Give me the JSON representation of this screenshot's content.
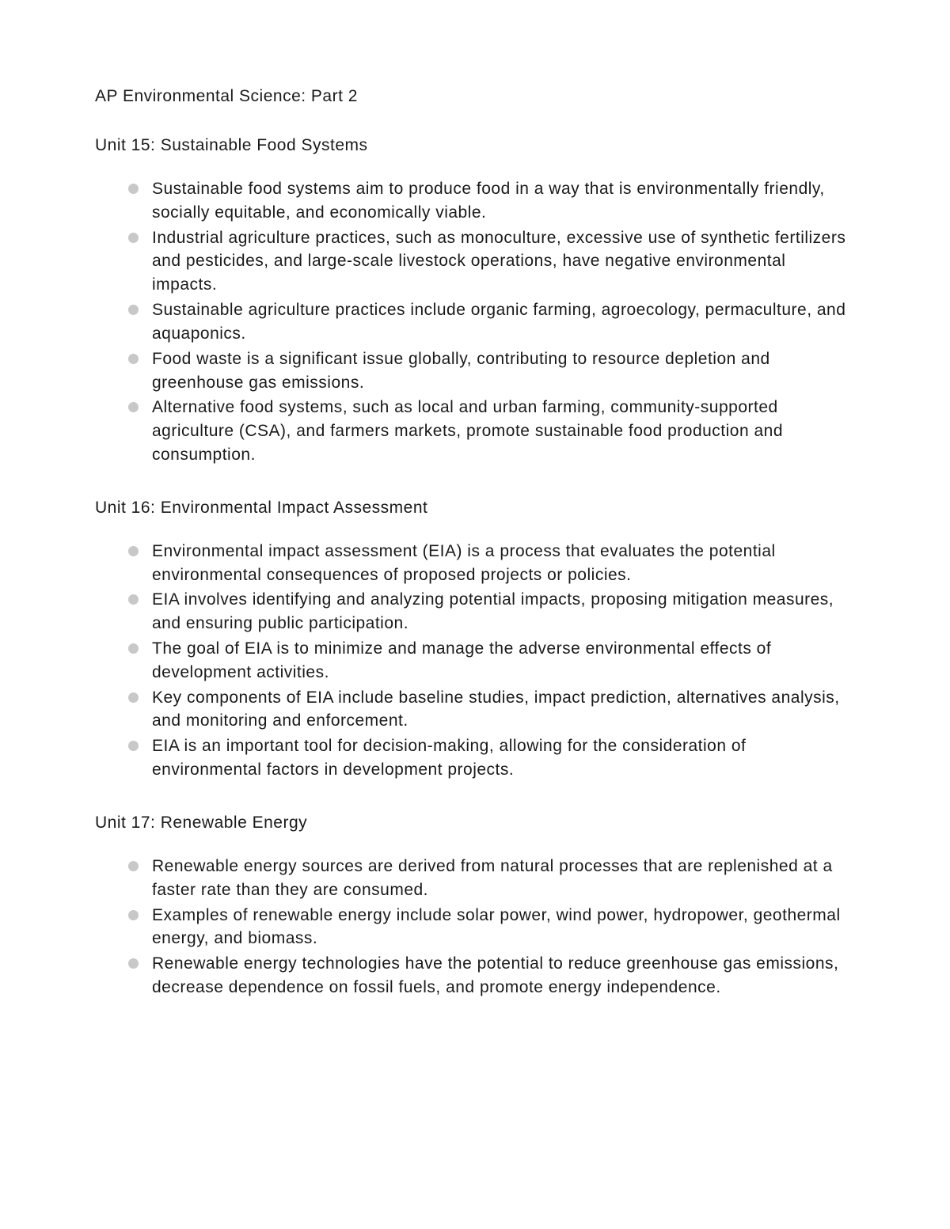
{
  "document": {
    "title": "AP Environmental Science: Part 2",
    "title_fontsize": 21,
    "body_fontsize": 21,
    "text_color": "#1a1a1a",
    "background_color": "#ffffff",
    "bullet_color": "#c8c8c8",
    "bullet_diameter": 13,
    "line_height": 1.42,
    "letter_spacing": 0.5,
    "font_family": "Verdana, Geneva, sans-serif",
    "units": [
      {
        "heading": "Unit 15: Sustainable Food Systems",
        "bullets": [
          "Sustainable food systems aim to produce food in a way that is environmentally friendly, socially equitable, and economically viable.",
          "Industrial agriculture practices, such as monoculture, excessive use of synthetic fertilizers and pesticides, and large-scale livestock operations, have negative environmental impacts.",
          "Sustainable agriculture practices include organic farming, agroecology, permaculture, and aquaponics.",
          "Food waste is a significant issue globally, contributing to resource depletion and greenhouse gas emissions.",
          "Alternative food systems, such as local and urban farming, community-supported agriculture (CSA), and farmers markets, promote sustainable food production and consumption."
        ]
      },
      {
        "heading": "Unit 16: Environmental Impact Assessment",
        "bullets": [
          "Environmental impact assessment (EIA) is a process that evaluates the potential environmental consequences of proposed projects or policies.",
          "EIA involves identifying and analyzing potential impacts, proposing mitigation measures, and ensuring public participation.",
          "The goal of EIA is to minimize and manage the adverse environmental effects of development activities.",
          "Key components of EIA include baseline studies, impact prediction, alternatives analysis, and monitoring and enforcement.",
          "EIA is an important tool for decision-making, allowing for the consideration of environmental factors in development projects."
        ]
      },
      {
        "heading": "Unit 17: Renewable Energy",
        "bullets": [
          "Renewable energy sources are derived from natural processes that are replenished at a faster rate than they are consumed.",
          "Examples of renewable energy include solar power, wind power, hydropower, geothermal energy, and biomass.",
          "Renewable energy technologies have the potential to reduce greenhouse gas emissions, decrease dependence on fossil fuels, and promote energy independence."
        ]
      }
    ]
  }
}
